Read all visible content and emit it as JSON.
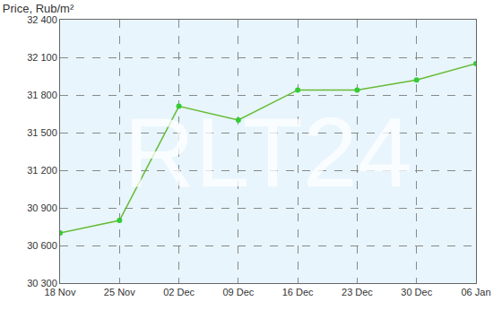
{
  "chart_data": {
    "type": "line",
    "title": "Price, Rub/m²",
    "categories": [
      "18 Nov",
      "25 Nov",
      "02 Dec",
      "09 Dec",
      "16 Dec",
      "23 Dec",
      "30 Dec",
      "06 Jan"
    ],
    "values": [
      30700,
      30800,
      31710,
      31600,
      31840,
      31840,
      31920,
      32050
    ],
    "color": "#66bb33",
    "marker": "circle",
    "ylim": [
      30300,
      32400
    ],
    "yticks": [
      {
        "value": 30300,
        "label": "30 300"
      },
      {
        "value": 30600,
        "label": "30 600"
      },
      {
        "value": 30900,
        "label": "30 900"
      },
      {
        "value": 31200,
        "label": "31 200"
      },
      {
        "value": 31500,
        "label": "31 500"
      },
      {
        "value": 31800,
        "label": "31 800"
      },
      {
        "value": 32100,
        "label": "32 100"
      },
      {
        "value": 32400,
        "label": "32 400"
      }
    ],
    "grid": true,
    "annotations": [
      {
        "text": "RLT24"
      }
    ]
  }
}
